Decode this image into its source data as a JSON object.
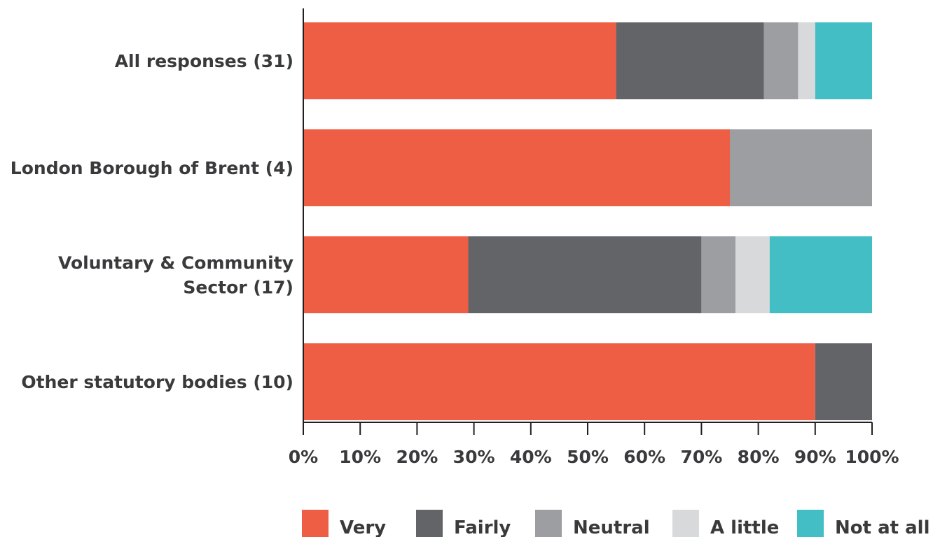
{
  "chart_data": {
    "type": "bar",
    "orientation": "horizontal",
    "stacked": true,
    "categories": [
      [
        "All responses (31)"
      ],
      [
        "London Borough of Brent (4)"
      ],
      [
        "Voluntary & Community",
        "Sector (17)"
      ],
      [
        "Other statutory bodies (10)"
      ]
    ],
    "series": [
      {
        "name": "Very",
        "color": "#ed5e45",
        "values": [
          55,
          75,
          29,
          90
        ]
      },
      {
        "name": "Fairly",
        "color": "#636468",
        "values": [
          26,
          0,
          41,
          10
        ]
      },
      {
        "name": "Neutral",
        "color": "#9d9ea2",
        "values": [
          6,
          25,
          6,
          0
        ]
      },
      {
        "name": "A little",
        "color": "#d8d9db",
        "values": [
          3,
          0,
          6,
          0
        ]
      },
      {
        "name": "Not at all",
        "color": "#42bec4",
        "values": [
          10,
          0,
          18,
          0
        ]
      }
    ],
    "x_ticks": [
      "0%",
      "10%",
      "20%",
      "30%",
      "40%",
      "50%",
      "60%",
      "70%",
      "80%",
      "90%",
      "100%"
    ],
    "xlim": [
      0,
      100
    ],
    "legend_position": "bottom",
    "grid": false,
    "axis_color": "#231f20"
  }
}
